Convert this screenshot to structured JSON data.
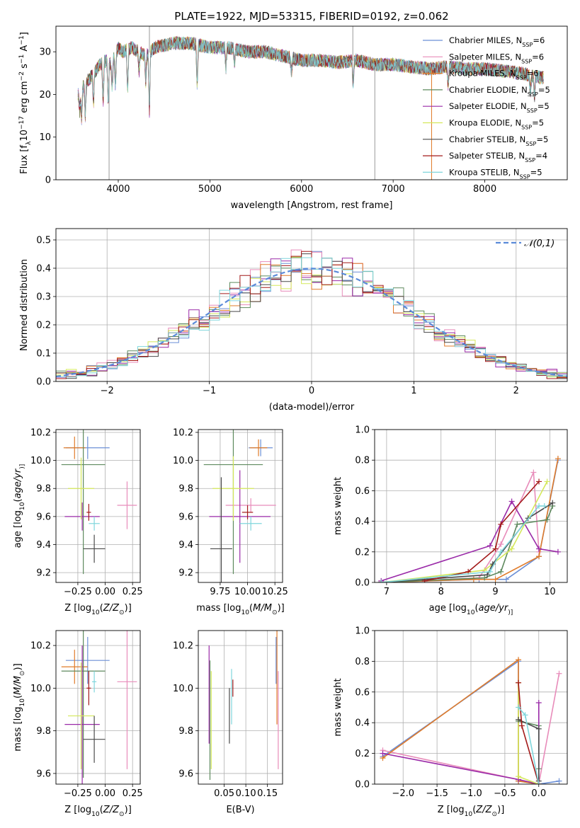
{
  "figure": {
    "title": "PLATE=1922, MJD=53315, FIBERID=0192, z=0.062"
  },
  "legend_entries": [
    {
      "label": "Chabrier MILES, N",
      "sub": "SSP",
      "tail": "=6",
      "color": "#6b8fd6"
    },
    {
      "label": "Salpeter MILES, N",
      "sub": "SSP",
      "tail": "=6",
      "color": "#e88cba"
    },
    {
      "label": "Kroupa MILES, N",
      "sub": "SSP",
      "tail": "=6",
      "color": "#e07b2a"
    },
    {
      "label": "Chabrier ELODIE, N",
      "sub": "SSP",
      "tail": "=5",
      "color": "#5e8a5e"
    },
    {
      "label": "Salpeter ELODIE, N",
      "sub": "SSP",
      "tail": "=5",
      "color": "#9a2aa8"
    },
    {
      "label": "Kroupa ELODIE, N",
      "sub": "SSP",
      "tail": "=5",
      "color": "#d4e85a"
    },
    {
      "label": "Chabrier STELIB, N",
      "sub": "SSP",
      "tail": "=5",
      "color": "#4a4a4a"
    },
    {
      "label": "Salpeter STELIB, N",
      "sub": "SSP",
      "tail": "=4",
      "color": "#a31a1a"
    },
    {
      "label": "Kroupa STELIB, N",
      "sub": "SSP",
      "tail": "=5",
      "color": "#7fd6dc"
    }
  ],
  "chart_data": [
    {
      "id": "spectrum",
      "type": "line",
      "xlabel": "wavelength [Angstrom, rest frame]",
      "ylabel_parts": [
        "Flux [f",
        "λ",
        "10",
        "−17",
        " erg cm",
        "−2",
        " s",
        "−1",
        " A",
        "−1",
        "]"
      ],
      "xlim": [
        3320,
        8900
      ],
      "ylim": [
        0,
        36
      ],
      "xticks": [
        4000,
        5000,
        6000,
        7000,
        8000
      ],
      "yticks": [
        0,
        10,
        20,
        30
      ],
      "grid": false,
      "legend_placement": "top-right",
      "continuum": [
        [
          3560,
          20
        ],
        [
          3620,
          22
        ],
        [
          3700,
          24
        ],
        [
          3800,
          27
        ],
        [
          3870,
          28
        ],
        [
          3920,
          27
        ],
        [
          4000,
          31
        ],
        [
          4050,
          30
        ],
        [
          4150,
          31
        ],
        [
          4300,
          29
        ],
        [
          4400,
          31
        ],
        [
          4600,
          32
        ],
        [
          4800,
          32
        ],
        [
          5000,
          31
        ],
        [
          5200,
          31
        ],
        [
          5400,
          30
        ],
        [
          5600,
          30
        ],
        [
          5800,
          29
        ],
        [
          6000,
          28
        ],
        [
          6200,
          28
        ],
        [
          6400,
          27.5
        ],
        [
          6600,
          28
        ],
        [
          6800,
          27
        ],
        [
          7000,
          27
        ],
        [
          7200,
          26.5
        ],
        [
          7400,
          26
        ],
        [
          7600,
          26.5
        ],
        [
          7800,
          26
        ],
        [
          8000,
          26
        ],
        [
          8200,
          25.5
        ],
        [
          8400,
          25
        ],
        [
          8600,
          24
        ]
      ],
      "dips": [
        [
          3580,
          16
        ],
        [
          3600,
          14
        ],
        [
          3640,
          15
        ],
        [
          3730,
          17
        ],
        [
          3835,
          18
        ],
        [
          3890,
          18
        ],
        [
          3934,
          21
        ],
        [
          3969,
          22
        ],
        [
          4102,
          20
        ],
        [
          4227,
          25
        ],
        [
          4300,
          23
        ],
        [
          4340,
          16
        ],
        [
          4861,
          22
        ],
        [
          5175,
          26
        ],
        [
          5270,
          27
        ],
        [
          5890,
          25
        ],
        [
          6563,
          22
        ],
        [
          7600,
          22
        ],
        [
          8498,
          20
        ],
        [
          8542,
          19
        ],
        [
          8662,
          19
        ]
      ],
      "spikes": [
        [
          3900,
          0
        ],
        [
          4340,
          36
        ],
        [
          6560,
          36
        ],
        [
          6800,
          0
        ],
        [
          7420,
          0
        ],
        [
          7400,
          26
        ]
      ]
    },
    {
      "id": "residuals",
      "type": "step-histogram",
      "xlabel": "(data-model)/error",
      "ylabel": "Normed distribution",
      "xlim": [
        -2.5,
        2.5
      ],
      "ylim": [
        0,
        0.54
      ],
      "xticks": [
        -2,
        -1,
        0,
        1,
        2
      ],
      "yticks": [
        0.0,
        0.1,
        0.2,
        0.3,
        0.4,
        0.5
      ],
      "grid": true,
      "reference_curve": {
        "name": "𝒩(0,1)",
        "color": "#5b8bd9"
      },
      "bin_width": 0.1
    },
    {
      "id": "z-age",
      "type": "scatter-errorbar",
      "xlabel_parts": [
        "Z [log",
        "10",
        "(",
        "Z/Z",
        "⊙",
        ")]"
      ],
      "ylabel_parts": [
        "age  [log",
        "10",
        "(",
        "age/yr",
        ")]"
      ],
      "xlim": [
        -0.45,
        0.32
      ],
      "ylim": [
        9.13,
        10.22
      ],
      "xticks": [
        -0.25,
        0.0,
        0.25
      ],
      "yticks": [
        9.2,
        9.4,
        9.6,
        9.8,
        10.0,
        10.2
      ],
      "grid": true,
      "points": [
        {
          "x": -0.16,
          "y": 10.09,
          "xe": 0.2,
          "ye": 0.08,
          "c": "#6b8fd6"
        },
        {
          "x": 0.2,
          "y": 9.68,
          "xe": 0.09,
          "ye": 0.17,
          "c": "#e88cba"
        },
        {
          "x": -0.28,
          "y": 10.09,
          "xe": 0.1,
          "ye": 0.08,
          "c": "#e07b2a"
        },
        {
          "x": -0.2,
          "y": 9.97,
          "xe": 0.2,
          "ye": 0.78,
          "c": "#5e8a5e"
        },
        {
          "x": -0.21,
          "y": 9.6,
          "xe": 0.16,
          "ye": 0.1,
          "c": "#9a2aa8"
        },
        {
          "x": -0.22,
          "y": 9.8,
          "xe": 0.12,
          "ye": 0.22,
          "c": "#d4e85a"
        },
        {
          "x": -0.1,
          "y": 9.37,
          "xe": 0.1,
          "ye": 0.1,
          "c": "#4a4a4a"
        },
        {
          "x": -0.15,
          "y": 9.63,
          "xe": 0.02,
          "ye": 0.06,
          "c": "#a31a1a"
        },
        {
          "x": -0.1,
          "y": 9.55,
          "xe": 0.05,
          "ye": 0.05,
          "c": "#7fd6dc"
        }
      ]
    },
    {
      "id": "mass-age",
      "type": "scatter-errorbar",
      "xlabel_parts": [
        "mass [log",
        "10",
        "(",
        "M/M",
        "⊙",
        ")]"
      ],
      "ylabel_parts": [],
      "xlim": [
        9.55,
        10.32
      ],
      "ylim": [
        9.13,
        10.22
      ],
      "xticks": [
        9.75,
        10.0,
        10.25
      ],
      "yticks": [
        9.2,
        9.4,
        9.6,
        9.8,
        10.0,
        10.2
      ],
      "grid": true,
      "points": [
        {
          "x": 10.12,
          "y": 10.09,
          "xe": 0.11,
          "ye": 0.06,
          "c": "#6b8fd6"
        },
        {
          "x": 10.03,
          "y": 9.68,
          "xe": 0.23,
          "ye": 0.05,
          "c": "#e88cba"
        },
        {
          "x": 10.1,
          "y": 10.09,
          "xe": 0.08,
          "ye": 0.06,
          "c": "#e07b2a"
        },
        {
          "x": 9.87,
          "y": 9.97,
          "xe": 0.27,
          "ye": 0.78,
          "c": "#5e8a5e"
        },
        {
          "x": 9.93,
          "y": 9.6,
          "xe": 0.28,
          "ye": 0.33,
          "c": "#9a2aa8"
        },
        {
          "x": 9.87,
          "y": 9.8,
          "xe": 0.19,
          "ye": 0.23,
          "c": "#d4e85a"
        },
        {
          "x": 9.76,
          "y": 9.37,
          "xe": 0.1,
          "ye": 0.51,
          "c": "#4a4a4a"
        },
        {
          "x": 10.0,
          "y": 9.63,
          "xe": 0.05,
          "ye": 0.05,
          "c": "#a31a1a"
        },
        {
          "x": 10.03,
          "y": 9.55,
          "xe": 0.1,
          "ye": 0.05,
          "c": "#7fd6dc"
        }
      ]
    },
    {
      "id": "age-mass-weight",
      "type": "line",
      "xlabel_parts": [
        "age  [log",
        "10",
        "(",
        "age/yr",
        ")]"
      ],
      "ylabel": "mass weight",
      "xlim": [
        6.78,
        10.32
      ],
      "ylim": [
        0,
        1
      ],
      "xticks": [
        7,
        8,
        9,
        10
      ],
      "yticks": [
        0.0,
        0.2,
        0.4,
        0.6,
        0.8,
        1.0
      ],
      "grid": true,
      "series": [
        {
          "c": "#6b8fd6",
          "x": [
            6.9,
            8.7,
            9.2,
            9.8,
            10.15
          ],
          "y": [
            0.0,
            0.02,
            0.02,
            0.17,
            0.8
          ]
        },
        {
          "c": "#e88cba",
          "x": [
            6.9,
            8.7,
            9.1,
            9.7,
            9.8
          ],
          "y": [
            0.0,
            0.03,
            0.25,
            0.72,
            0.2
          ]
        },
        {
          "c": "#e07b2a",
          "x": [
            6.9,
            8.6,
            9.0,
            9.8,
            10.15
          ],
          "y": [
            0.0,
            0.02,
            0.02,
            0.17,
            0.81
          ]
        },
        {
          "c": "#5e8a5e",
          "x": [
            6.9,
            8.8,
            9.1,
            9.4,
            9.95,
            10.05
          ],
          "y": [
            0.0,
            0.03,
            0.07,
            0.38,
            0.41,
            0.5
          ]
        },
        {
          "c": "#9a2aa8",
          "x": [
            6.9,
            8.9,
            9.3,
            9.8,
            10.15
          ],
          "y": [
            0.01,
            0.24,
            0.53,
            0.22,
            0.2
          ]
        },
        {
          "c": "#d4e85a",
          "x": [
            6.9,
            8.8,
            9.3,
            9.95
          ],
          "y": [
            0.0,
            0.08,
            0.22,
            0.66
          ]
        },
        {
          "c": "#4a4a4a",
          "x": [
            6.9,
            8.85,
            8.95,
            9.6,
            10.05
          ],
          "y": [
            0.0,
            0.05,
            0.12,
            0.42,
            0.52
          ]
        },
        {
          "c": "#a31a1a",
          "x": [
            7.7,
            8.5,
            9.0,
            9.1,
            9.8
          ],
          "y": [
            0.01,
            0.07,
            0.22,
            0.38,
            0.66
          ]
        },
        {
          "c": "#7fd6dc",
          "x": [
            6.9,
            8.9,
            9.1,
            9.8,
            9.9
          ],
          "y": [
            0.0,
            0.07,
            0.2,
            0.5,
            0.5
          ]
        }
      ]
    },
    {
      "id": "z-mass",
      "type": "scatter-errorbar",
      "xlabel_parts": [
        "Z [log",
        "10",
        "(",
        "Z/Z",
        "⊙",
        ")]"
      ],
      "ylabel_parts": [
        "mass [log",
        "10",
        "(",
        "M/M",
        "⊙",
        ")]"
      ],
      "xlim": [
        -0.45,
        0.32
      ],
      "ylim": [
        9.55,
        10.27
      ],
      "xticks": [
        -0.25,
        0.0,
        0.25
      ],
      "yticks": [
        9.6,
        9.8,
        10.0,
        10.2
      ],
      "grid": true,
      "points": [
        {
          "x": -0.16,
          "y": 10.13,
          "xe": 0.2,
          "ye": 0.11,
          "c": "#6b8fd6"
        },
        {
          "x": 0.2,
          "y": 10.03,
          "xe": 0.09,
          "ye": 0.41,
          "c": "#e88cba"
        },
        {
          "x": -0.28,
          "y": 10.1,
          "xe": 0.12,
          "ye": 0.08,
          "c": "#e07b2a"
        },
        {
          "x": -0.2,
          "y": 10.08,
          "xe": 0.2,
          "ye": 0.5,
          "c": "#5e8a5e"
        },
        {
          "x": -0.21,
          "y": 9.83,
          "xe": 0.16,
          "ye": 0.37,
          "c": "#9a2aa8"
        },
        {
          "x": -0.22,
          "y": 9.87,
          "xe": 0.12,
          "ye": 0.25,
          "c": "#d4e85a"
        },
        {
          "x": -0.1,
          "y": 9.76,
          "xe": 0.1,
          "ye": 0.11,
          "c": "#4a4a4a"
        },
        {
          "x": -0.15,
          "y": 10.0,
          "xe": 0.02,
          "ye": 0.08,
          "c": "#a31a1a"
        },
        {
          "x": -0.1,
          "y": 10.03,
          "xe": 0.02,
          "ye": 0.05,
          "c": "#7fd6dc"
        }
      ]
    },
    {
      "id": "ebv-mass",
      "type": "scatter-errorbar",
      "xlabel": "E(B-V)",
      "ylabel_parts": [],
      "xlim": [
        -0.01,
        0.185
      ],
      "ylim": [
        9.55,
        10.27
      ],
      "xticks": [
        0.05,
        0.1,
        0.15
      ],
      "yticks": [
        9.6,
        9.8,
        10.0,
        10.2
      ],
      "grid": true,
      "points": [
        {
          "x": 0.17,
          "y": 10.13,
          "xe": 0,
          "ye": 0.11,
          "c": "#6b8fd6"
        },
        {
          "x": 0.175,
          "y": 9.85,
          "xe": 0,
          "ye": 0.23,
          "c": "#e88cba"
        },
        {
          "x": 0.172,
          "y": 10.08,
          "xe": 0,
          "ye": 0.25,
          "c": "#e07b2a"
        },
        {
          "x": 0.017,
          "y": 9.85,
          "xe": 0,
          "ye": 0.28,
          "c": "#5e8a5e"
        },
        {
          "x": 0.015,
          "y": 9.97,
          "xe": 0,
          "ye": 0.23,
          "c": "#9a2aa8"
        },
        {
          "x": 0.02,
          "y": 9.85,
          "xe": 0,
          "ye": 0.23,
          "c": "#d4e85a"
        },
        {
          "x": 0.062,
          "y": 9.87,
          "xe": 0,
          "ye": 0.13,
          "c": "#4a4a4a"
        },
        {
          "x": 0.07,
          "y": 10.0,
          "xe": 0,
          "ye": 0.04,
          "c": "#a31a1a"
        },
        {
          "x": 0.067,
          "y": 9.96,
          "xe": 0,
          "ye": 0.13,
          "c": "#7fd6dc"
        }
      ]
    },
    {
      "id": "z-mass-weight",
      "type": "line",
      "xlabel_parts": [
        "Z [log",
        "10",
        "(",
        "Z/Z",
        "⊙",
        ")]"
      ],
      "ylabel": "mass weight",
      "xlim": [
        -2.42,
        0.42
      ],
      "ylim": [
        0,
        1
      ],
      "xticks": [
        -2.0,
        -1.5,
        -1.0,
        -0.5,
        0.0
      ],
      "yticks": [
        0.0,
        0.2,
        0.4,
        0.6,
        0.8,
        1.0
      ],
      "grid": true,
      "series": [
        {
          "c": "#6b8fd6",
          "x": [
            -2.3,
            -0.3,
            -0.3,
            0.0,
            0.3
          ],
          "y": [
            0.18,
            0.8,
            0.02,
            0.0,
            0.02
          ]
        },
        {
          "c": "#e88cba",
          "x": [
            -2.3,
            -0.3,
            0.0,
            0.3
          ],
          "y": [
            0.22,
            0.03,
            0.0,
            0.72
          ]
        },
        {
          "c": "#e07b2a",
          "x": [
            -2.3,
            -0.3,
            -0.3,
            0.0
          ],
          "y": [
            0.17,
            0.81,
            0.02,
            0.0
          ]
        },
        {
          "c": "#5e8a5e",
          "x": [
            -0.3,
            0.0,
            0.0
          ],
          "y": [
            0.41,
            0.38,
            0.1
          ]
        },
        {
          "c": "#9a2aa8",
          "x": [
            -2.3,
            -0.3,
            0.0,
            0.0
          ],
          "y": [
            0.2,
            0.03,
            0.0,
            0.53
          ]
        },
        {
          "c": "#d4e85a",
          "x": [
            -0.3,
            -0.3,
            0.0
          ],
          "y": [
            0.66,
            0.05,
            0.0
          ]
        },
        {
          "c": "#4a4a4a",
          "x": [
            -0.3,
            0.0,
            0.0
          ],
          "y": [
            0.42,
            0.36,
            0.02
          ]
        },
        {
          "c": "#a31a1a",
          "x": [
            -0.3,
            -0.25,
            0.0
          ],
          "y": [
            0.66,
            0.38,
            0.0
          ]
        },
        {
          "c": "#7fd6dc",
          "x": [
            -0.3,
            -0.2,
            0.0
          ],
          "y": [
            0.5,
            0.45,
            0.0
          ]
        }
      ]
    }
  ]
}
